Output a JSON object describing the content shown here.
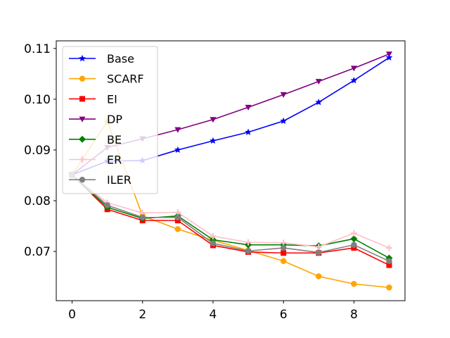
{
  "chart_data": {
    "type": "line",
    "title": "",
    "xlabel": "",
    "ylabel": "",
    "x": [
      0,
      1,
      2,
      3,
      4,
      5,
      6,
      7,
      8,
      9
    ],
    "xlim": [
      -0.45,
      9.45
    ],
    "ylim": [
      0.0603,
      0.1115
    ],
    "xticks": [
      0,
      2,
      4,
      6,
      8
    ],
    "xtick_labels": [
      "0",
      "2",
      "4",
      "6",
      "8"
    ],
    "yticks": [
      0.07,
      0.08,
      0.09,
      0.1,
      0.11
    ],
    "ytick_labels": [
      "0.07",
      "0.08",
      "0.09",
      "0.10",
      "0.11"
    ],
    "grid": false,
    "legend_position": "top-left",
    "series": [
      {
        "name": "Base",
        "color": "#0000ff",
        "marker": "star",
        "values": [
          0.0851,
          0.0878,
          0.0879,
          0.09,
          0.0918,
          0.0935,
          0.0957,
          0.0994,
          0.1037,
          0.1082
        ]
      },
      {
        "name": "SCARF",
        "color": "#ffa500",
        "marker": "circle",
        "values": [
          0.0851,
          0.0956,
          0.077,
          0.0744,
          0.0722,
          0.0702,
          0.0681,
          0.0651,
          0.0636,
          0.0629
        ]
      },
      {
        "name": "EI",
        "color": "#ff0000",
        "marker": "square",
        "values": [
          0.0851,
          0.0783,
          0.0761,
          0.0761,
          0.0712,
          0.0699,
          0.0697,
          0.0697,
          0.0707,
          0.0673
        ]
      },
      {
        "name": "DP",
        "color": "#800080",
        "marker": "triangle-down",
        "values": [
          0.0851,
          0.0905,
          0.0922,
          0.094,
          0.096,
          0.0984,
          0.1009,
          0.1035,
          0.1061,
          0.1089
        ]
      },
      {
        "name": "BE",
        "color": "#008000",
        "marker": "diamond",
        "values": [
          0.0851,
          0.0787,
          0.0765,
          0.077,
          0.0723,
          0.0713,
          0.0713,
          0.0711,
          0.0725,
          0.0687
        ]
      },
      {
        "name": "ER",
        "color": "#ffc0cb",
        "marker": "plus",
        "values": [
          0.0851,
          0.0796,
          0.0776,
          0.0777,
          0.073,
          0.0718,
          0.0717,
          0.0709,
          0.0736,
          0.0707
        ]
      },
      {
        "name": "ILER",
        "color": "#808080",
        "marker": "circle",
        "values": [
          0.0851,
          0.0791,
          0.0767,
          0.0767,
          0.0716,
          0.0701,
          0.0707,
          0.0698,
          0.0713,
          0.0681
        ]
      }
    ]
  }
}
